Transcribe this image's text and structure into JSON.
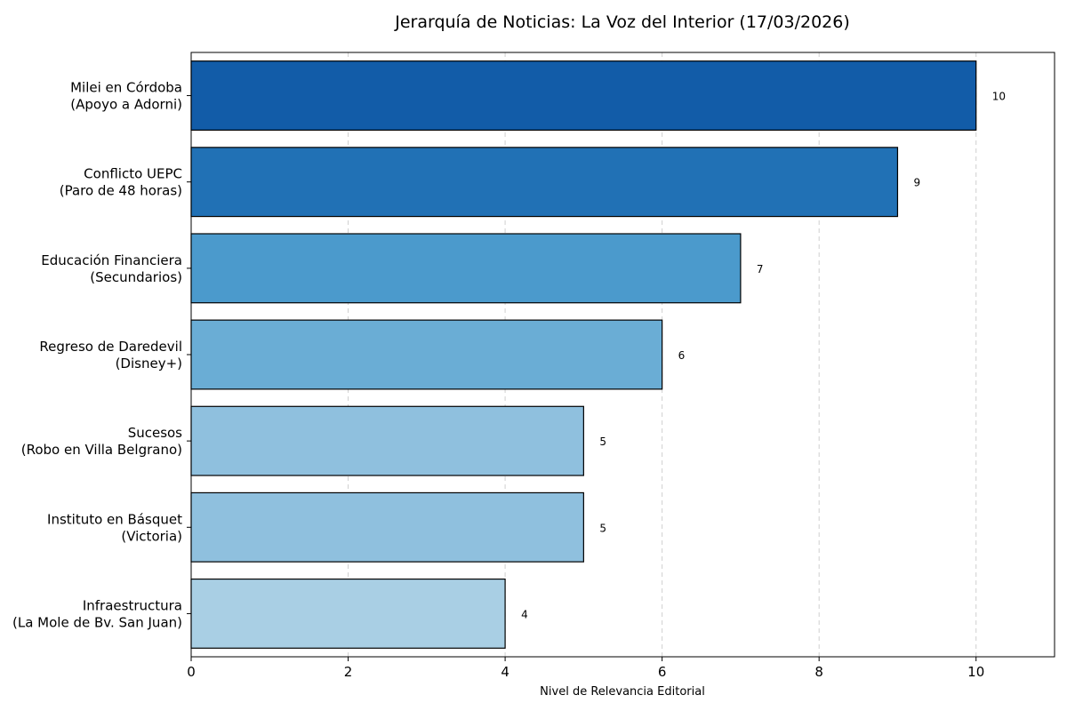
{
  "chart_data": {
    "type": "bar",
    "orientation": "horizontal",
    "title": "Jerarquía de Noticias: La Voz del Interior (17/03/2026)",
    "xlabel": "Nivel de Relevancia Editorial",
    "ylabel": "",
    "xlim": [
      0,
      11
    ],
    "xticks": [
      0,
      2,
      4,
      6,
      8,
      10
    ],
    "grid": "x-dashed",
    "categories": [
      [
        "Milei en Córdoba",
        "(Apoyo a Adorni)"
      ],
      [
        "Conflicto UEPC",
        "(Paro de 48 horas)"
      ],
      [
        "Educación Financiera",
        "(Secundarios)"
      ],
      [
        "Regreso de Daredevil",
        "(Disney+)"
      ],
      [
        "Sucesos",
        "(Robo en Villa Belgrano)"
      ],
      [
        "Instituto en Básquet",
        "(Victoria)"
      ],
      [
        "Infraestructura",
        "(La Mole de Bv. San Juan)"
      ]
    ],
    "values": [
      10,
      9,
      7,
      6,
      5,
      5,
      4
    ],
    "value_labels": [
      "10",
      "9",
      "7",
      "6",
      "5",
      "5",
      "4"
    ],
    "colors": [
      "#125ca8",
      "#2171b5",
      "#4b9acc",
      "#6aadd5",
      "#8fc0de",
      "#8fc0de",
      "#a9cfe4"
    ]
  }
}
